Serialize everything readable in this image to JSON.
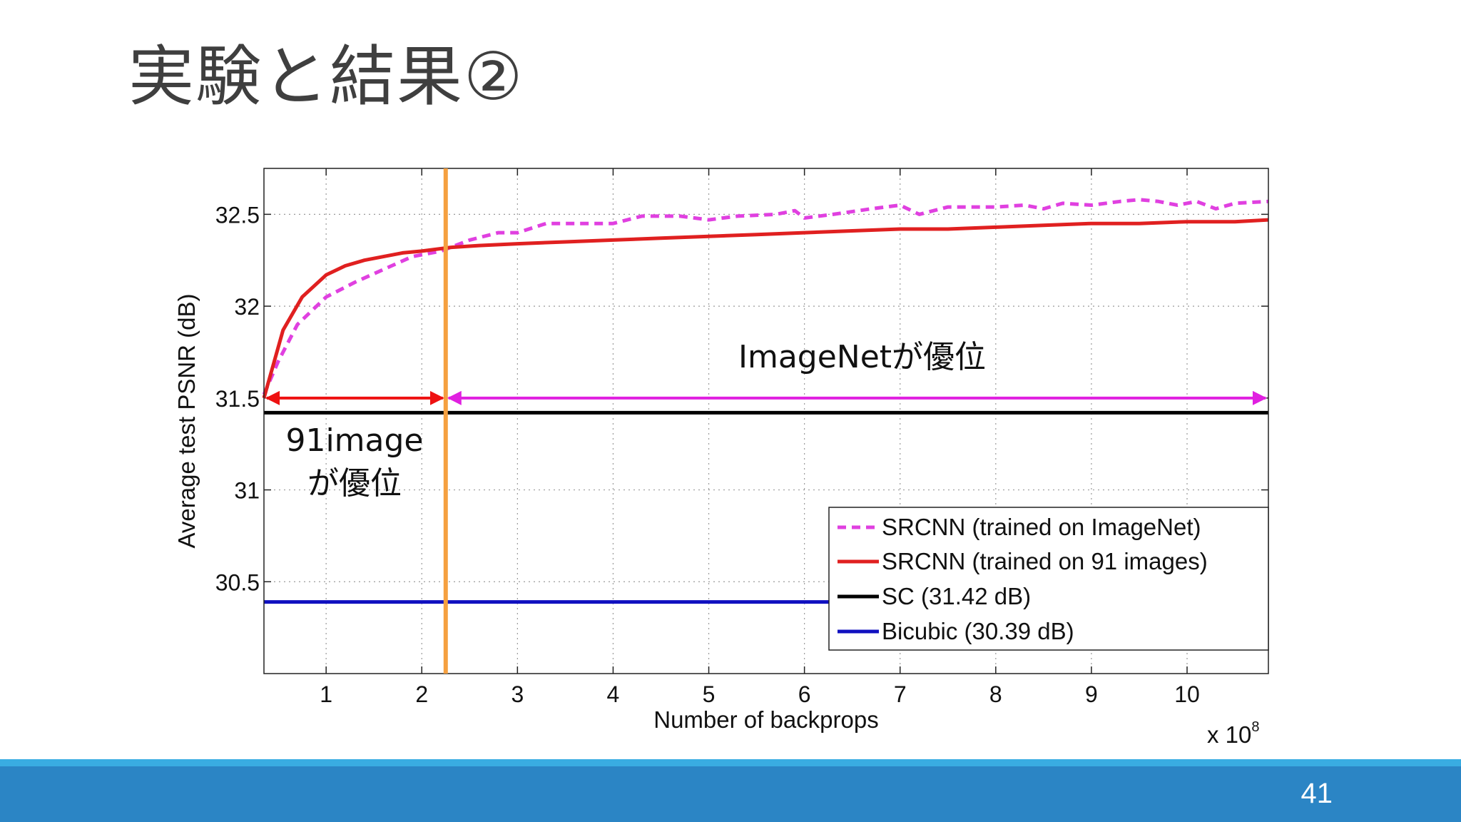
{
  "slide": {
    "title": "実験と結果②",
    "page_number": "41"
  },
  "annotations": {
    "imagenet_note": "ImageNetが優位",
    "image91_note_line1": "91image",
    "image91_note_line2": "が優位"
  },
  "colors": {
    "imagenet": "#e040e0",
    "images91": "#e02020",
    "sc": "#000000",
    "bicubic": "#1010c0",
    "divider": "#f5a040",
    "arrow_left": "#ee1111",
    "arrow_right": "#e020e0"
  },
  "chart_data": {
    "type": "line",
    "xlabel": "Number of backprops",
    "ylabel": "Average test PSNR (dB)",
    "x_multiplier": "x 10",
    "x_multiplier_exp": "8",
    "xlim": [
      0.35,
      10.85
    ],
    "ylim": [
      30.0,
      32.75
    ],
    "xticks": [
      1,
      2,
      3,
      4,
      5,
      6,
      7,
      8,
      9,
      10
    ],
    "xtick_labels": [
      "1",
      "2",
      "3",
      "4",
      "5",
      "6",
      "7",
      "8",
      "9",
      "10"
    ],
    "yticks": [
      30.5,
      31,
      31.5,
      32,
      32.5
    ],
    "ytick_labels": [
      "30.5",
      "31",
      "31.5",
      "32",
      "32.5"
    ],
    "grid": true,
    "legend_position": "bottom-right",
    "crossover_x": 2.25,
    "series": [
      {
        "name": "SRCNN (trained on ImageNet)",
        "style": "dashed",
        "color": "#e040e0",
        "x": [
          0.35,
          0.5,
          0.7,
          1.0,
          1.3,
          1.6,
          1.9,
          2.2,
          2.5,
          2.8,
          3.0,
          3.3,
          3.7,
          4.0,
          4.3,
          4.7,
          5.0,
          5.3,
          5.7,
          5.9,
          6.0,
          6.3,
          6.7,
          7.0,
          7.2,
          7.5,
          8.0,
          8.3,
          8.5,
          8.7,
          9.0,
          9.3,
          9.5,
          9.7,
          9.9,
          10.1,
          10.3,
          10.5,
          10.85
        ],
        "y": [
          31.52,
          31.7,
          31.9,
          32.05,
          32.13,
          32.2,
          32.27,
          32.3,
          32.36,
          32.4,
          32.4,
          32.45,
          32.45,
          32.45,
          32.49,
          32.49,
          32.47,
          32.49,
          32.5,
          32.52,
          32.48,
          32.5,
          32.53,
          32.55,
          32.5,
          32.54,
          32.54,
          32.55,
          32.53,
          32.56,
          32.55,
          32.57,
          32.58,
          32.57,
          32.55,
          32.57,
          32.53,
          32.56,
          32.57
        ]
      },
      {
        "name": "SRCNN (trained on 91 images)",
        "style": "solid",
        "color": "#e02020",
        "x": [
          0.35,
          0.55,
          0.75,
          1.0,
          1.2,
          1.4,
          1.6,
          1.8,
          2.0,
          2.3,
          2.6,
          3.0,
          3.5,
          4.0,
          4.5,
          5.0,
          5.5,
          6.0,
          6.5,
          7.0,
          7.5,
          8.0,
          8.5,
          9.0,
          9.5,
          10.0,
          10.5,
          10.85
        ],
        "y": [
          31.5,
          31.87,
          32.05,
          32.17,
          32.22,
          32.25,
          32.27,
          32.29,
          32.3,
          32.32,
          32.33,
          32.34,
          32.35,
          32.36,
          32.37,
          32.38,
          32.39,
          32.4,
          32.41,
          32.42,
          32.42,
          32.43,
          32.44,
          32.45,
          32.45,
          32.46,
          32.46,
          32.47
        ]
      },
      {
        "name": "SC (31.42 dB)",
        "style": "solid",
        "color": "#000000",
        "x": [
          0.35,
          10.85
        ],
        "y": [
          31.42,
          31.42
        ]
      },
      {
        "name": "Bicubic (30.39 dB)",
        "style": "solid",
        "color": "#1010c0",
        "x": [
          0.35,
          10.85
        ],
        "y": [
          30.39,
          30.39
        ]
      }
    ]
  }
}
